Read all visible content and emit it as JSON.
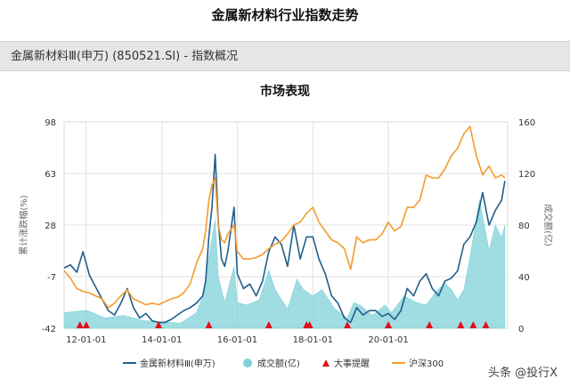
{
  "page": {
    "title": "金属新材料行业指数走势",
    "subheader": "金属新材料Ⅲ(申万) (850521.SI) - 指数概况",
    "section_title": "市场表现",
    "watermark": "头条 @投行X"
  },
  "colors": {
    "index": "#1f5f8b",
    "csi300": "#f39c2b",
    "volume": "#7fd1d9",
    "events": "#e0101a",
    "grid": "#e2e2e2"
  },
  "chart_data": {
    "type": "line",
    "xlim": [
      "2011-06-01",
      "2023-02-28"
    ],
    "x_ticks": [
      "12-01-01",
      "14-01-01",
      "16-01-01",
      "18-01-01",
      "20-01-01"
    ],
    "x_tick_dates": [
      "2012-01-01",
      "2014-01-01",
      "2016-01-01",
      "2018-01-01",
      "2020-01-01"
    ],
    "y_left": {
      "label": "累计涨跌幅(%)",
      "lim": [
        -42,
        98
      ],
      "ticks": [
        "98",
        "63",
        "28",
        "-7",
        "-42"
      ]
    },
    "y_right": {
      "label": "成交额(亿)",
      "lim": [
        0,
        160
      ],
      "ticks": [
        "160",
        "120",
        "80",
        "40",
        "0"
      ]
    },
    "grid": true,
    "legend_position": "bottom",
    "legend": [
      "金属新材料Ⅲ(申万)",
      "成交额(亿)",
      "大事提醒",
      "沪深300"
    ],
    "series": [
      {
        "name": "金属新材料Ⅲ(申万)",
        "axis": "left",
        "x": [
          "2011-06",
          "2011-08",
          "2011-10",
          "2011-12",
          "2012-02",
          "2012-04",
          "2012-06",
          "2012-08",
          "2012-10",
          "2012-12",
          "2013-02",
          "2013-04",
          "2013-06",
          "2013-08",
          "2013-10",
          "2013-12",
          "2014-02",
          "2014-04",
          "2014-06",
          "2014-08",
          "2014-10",
          "2014-12",
          "2015-02",
          "2015-03",
          "2015-04",
          "2015-05",
          "2015-06",
          "2015-07",
          "2015-08",
          "2015-09",
          "2015-10",
          "2015-12",
          "2016-01",
          "2016-03",
          "2016-05",
          "2016-07",
          "2016-09",
          "2016-11",
          "2017-01",
          "2017-03",
          "2017-05",
          "2017-07",
          "2017-09",
          "2017-11",
          "2018-01",
          "2018-03",
          "2018-05",
          "2018-07",
          "2018-09",
          "2018-11",
          "2019-01",
          "2019-03",
          "2019-05",
          "2019-07",
          "2019-09",
          "2019-11",
          "2020-01",
          "2020-03",
          "2020-05",
          "2020-07",
          "2020-09",
          "2020-11",
          "2021-01",
          "2021-03",
          "2021-05",
          "2021-07",
          "2021-09",
          "2021-11",
          "2022-01",
          "2022-03",
          "2022-05",
          "2022-07",
          "2022-09",
          "2022-11",
          "2023-01",
          "2023-02"
        ],
        "y": [
          -1,
          1,
          -4,
          10,
          -6,
          -14,
          -22,
          -30,
          -33,
          -25,
          -15,
          -28,
          -35,
          -32,
          -37,
          -38,
          -38,
          -36,
          -33,
          -30,
          -28,
          -25,
          -20,
          -10,
          20,
          40,
          76,
          30,
          5,
          0,
          10,
          40,
          -5,
          -15,
          -12,
          -20,
          -10,
          10,
          20,
          15,
          0,
          28,
          5,
          20,
          20,
          5,
          -5,
          -20,
          -25,
          -35,
          -38,
          -28,
          -33,
          -30,
          -30,
          -34,
          -32,
          -36,
          -30,
          -15,
          -20,
          -10,
          -5,
          -15,
          -20,
          -10,
          -8,
          -3,
          15,
          20,
          30,
          50,
          28,
          38,
          45,
          58
        ]
      },
      {
        "name": "沪深300",
        "axis": "left",
        "x": [
          "2011-06",
          "2011-08",
          "2011-10",
          "2011-12",
          "2012-02",
          "2012-04",
          "2012-06",
          "2012-08",
          "2012-10",
          "2012-12",
          "2013-02",
          "2013-04",
          "2013-06",
          "2013-08",
          "2013-10",
          "2013-12",
          "2014-02",
          "2014-04",
          "2014-06",
          "2014-08",
          "2014-10",
          "2014-12",
          "2015-02",
          "2015-03",
          "2015-04",
          "2015-05",
          "2015-06",
          "2015-07",
          "2015-08",
          "2015-09",
          "2015-10",
          "2015-12",
          "2016-01",
          "2016-03",
          "2016-05",
          "2016-07",
          "2016-09",
          "2016-11",
          "2017-01",
          "2017-03",
          "2017-05",
          "2017-07",
          "2017-09",
          "2017-11",
          "2018-01",
          "2018-03",
          "2018-05",
          "2018-07",
          "2018-09",
          "2018-11",
          "2019-01",
          "2019-03",
          "2019-05",
          "2019-07",
          "2019-09",
          "2019-11",
          "2020-01",
          "2020-03",
          "2020-05",
          "2020-07",
          "2020-09",
          "2020-11",
          "2021-01",
          "2021-03",
          "2021-05",
          "2021-07",
          "2021-09",
          "2021-11",
          "2022-01",
          "2022-03",
          "2022-05",
          "2022-07",
          "2022-09",
          "2022-11",
          "2023-01",
          "2023-02"
        ],
        "y": [
          -3,
          -8,
          -15,
          -17,
          -18,
          -20,
          -22,
          -28,
          -25,
          -20,
          -16,
          -22,
          -24,
          -26,
          -25,
          -26,
          -24,
          -22,
          -21,
          -18,
          -12,
          2,
          12,
          24,
          45,
          55,
          60,
          28,
          18,
          16,
          22,
          28,
          10,
          5,
          5,
          6,
          8,
          12,
          15,
          17,
          22,
          28,
          30,
          36,
          40,
          30,
          24,
          18,
          16,
          12,
          -2,
          20,
          16,
          18,
          18,
          22,
          30,
          24,
          27,
          40,
          40,
          45,
          62,
          60,
          60,
          66,
          75,
          80,
          90,
          95,
          75,
          62,
          68,
          60,
          62,
          60
        ]
      },
      {
        "name": "成交额(亿)",
        "axis": "right",
        "x": [
          "2011-06",
          "2012-01",
          "2012-07",
          "2013-01",
          "2013-07",
          "2014-01",
          "2014-07",
          "2014-12",
          "2015-02",
          "2015-04",
          "2015-05",
          "2015-06",
          "2015-07",
          "2015-09",
          "2015-12",
          "2016-01",
          "2016-04",
          "2016-08",
          "2016-11",
          "2017-01",
          "2017-05",
          "2017-08",
          "2017-10",
          "2018-01",
          "2018-04",
          "2018-08",
          "2018-12",
          "2019-02",
          "2019-04",
          "2019-08",
          "2019-12",
          "2020-02",
          "2020-06",
          "2020-10",
          "2021-01",
          "2021-04",
          "2021-07",
          "2021-09",
          "2021-11",
          "2022-01",
          "2022-03",
          "2022-06",
          "2022-09",
          "2022-11",
          "2023-01",
          "2023-02"
        ],
        "y": [
          12,
          14,
          8,
          10,
          6,
          5,
          4,
          12,
          25,
          55,
          70,
          84,
          40,
          20,
          48,
          20,
          18,
          22,
          45,
          30,
          15,
          38,
          30,
          25,
          30,
          15,
          8,
          20,
          18,
          10,
          18,
          12,
          25,
          20,
          18,
          28,
          35,
          30,
          22,
          30,
          55,
          100,
          60,
          80,
          70,
          80
        ]
      }
    ],
    "events": [
      "2011-11",
      "2012-01",
      "2013-12",
      "2015-04",
      "2016-11",
      "2017-11",
      "2017-12",
      "2018-12",
      "2020-01",
      "2021-02",
      "2021-12",
      "2022-04",
      "2022-08"
    ]
  }
}
